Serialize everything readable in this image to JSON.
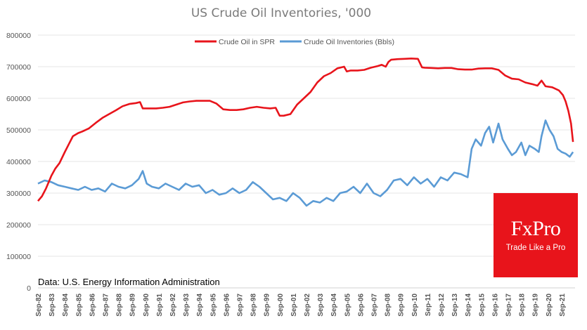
{
  "chart_data": {
    "type": "line",
    "title": "US Crude Oil Inventories, '000",
    "xlabel": "",
    "ylabel": "",
    "ylim": [
      0,
      800000
    ],
    "yticks": [
      "0",
      "100000",
      "200000",
      "300000",
      "400000",
      "500000",
      "600000",
      "700000",
      "800000"
    ],
    "ytick_values": [
      0,
      100000,
      200000,
      300000,
      400000,
      500000,
      600000,
      700000,
      800000
    ],
    "xticks": [
      "Sep-82",
      "Sep-83",
      "Sep-84",
      "Sep-85",
      "Sep-86",
      "Sep-87",
      "Sep-88",
      "Sep-89",
      "Sep-90",
      "Sep-91",
      "Sep-92",
      "Sep-93",
      "Sep-94",
      "Sep-95",
      "Sep-96",
      "Sep-97",
      "Sep-98",
      "Sep-99",
      "Sep-00",
      "Sep-01",
      "Sep-02",
      "Sep-03",
      "Sep-04",
      "Sep-05",
      "Sep-06",
      "Sep-07",
      "Sep-08",
      "Sep-09",
      "Sep-10",
      "Sep-11",
      "Sep-12",
      "Sep-13",
      "Sep-14",
      "Sep-15",
      "Sep-16",
      "Sep-17",
      "Sep-18",
      "Sep-19",
      "Sep-20",
      "Sep-21"
    ],
    "xlim": [
      1982.7,
      2022.7
    ],
    "grid": true,
    "legend_position": "top-center",
    "series": [
      {
        "name": "Crude Oil in SPR",
        "color": "#e8141b",
        "x": [
          1982.7,
          1983.0,
          1983.3,
          1983.7,
          1984.0,
          1984.3,
          1984.7,
          1985.0,
          1985.3,
          1985.7,
          1986.0,
          1986.5,
          1987.0,
          1987.5,
          1988.0,
          1988.5,
          1989.0,
          1989.5,
          1990.0,
          1990.3,
          1990.5,
          1991.0,
          1991.5,
          1992.0,
          1992.5,
          1993.0,
          1993.5,
          1994.0,
          1994.5,
          1995.0,
          1995.5,
          1996.0,
          1996.5,
          1997.0,
          1997.5,
          1998.0,
          1998.5,
          1999.0,
          1999.5,
          2000.0,
          2000.4,
          2000.7,
          2001.0,
          2001.5,
          2002.0,
          2002.5,
          2003.0,
          2003.5,
          2004.0,
          2004.5,
          2005.0,
          2005.5,
          2005.7,
          2006.0,
          2006.5,
          2007.0,
          2007.5,
          2008.0,
          2008.3,
          2008.6,
          2008.8,
          2009.0,
          2009.5,
          2010.0,
          2010.5,
          2011.0,
          2011.3,
          2011.5,
          2012.0,
          2012.5,
          2013.0,
          2013.5,
          2014.0,
          2014.5,
          2015.0,
          2015.5,
          2016.0,
          2016.5,
          2017.0,
          2017.5,
          2018.0,
          2018.5,
          2019.0,
          2019.5,
          2019.9,
          2020.2,
          2020.5,
          2021.0,
          2021.5,
          2021.8,
          2022.0,
          2022.2,
          2022.4,
          2022.55
        ],
        "values": [
          275000,
          290000,
          315000,
          355000,
          378000,
          395000,
          430000,
          455000,
          480000,
          490000,
          495000,
          505000,
          522000,
          538000,
          550000,
          562000,
          575000,
          582000,
          585000,
          588000,
          568000,
          568000,
          568000,
          570000,
          573000,
          580000,
          587000,
          590000,
          592000,
          592000,
          592000,
          583000,
          565000,
          563000,
          563000,
          565000,
          570000,
          573000,
          570000,
          568000,
          570000,
          545000,
          545000,
          550000,
          580000,
          600000,
          620000,
          650000,
          670000,
          680000,
          695000,
          700000,
          685000,
          688000,
          688000,
          690000,
          697000,
          702000,
          706000,
          700000,
          715000,
          722000,
          724000,
          725000,
          726000,
          725000,
          698000,
          697000,
          696000,
          695000,
          696000,
          696000,
          692000,
          691000,
          691000,
          694000,
          695000,
          695000,
          690000,
          672000,
          662000,
          660000,
          650000,
          645000,
          640000,
          656000,
          638000,
          635000,
          625000,
          610000,
          590000,
          560000,
          520000,
          462000
        ]
      },
      {
        "name": "Crude Oil Inventories (Bbls)",
        "color": "#5b9bd5",
        "x": [
          1982.7,
          1983.2,
          1983.7,
          1984.2,
          1984.7,
          1985.2,
          1985.7,
          1986.2,
          1986.7,
          1987.2,
          1987.7,
          1988.2,
          1988.7,
          1989.2,
          1989.7,
          1990.2,
          1990.5,
          1990.8,
          1991.2,
          1991.7,
          1992.2,
          1992.7,
          1993.2,
          1993.7,
          1994.2,
          1994.7,
          1995.2,
          1995.7,
          1996.2,
          1996.7,
          1997.2,
          1997.7,
          1998.2,
          1998.7,
          1999.2,
          1999.7,
          2000.2,
          2000.7,
          2001.2,
          2001.7,
          2002.2,
          2002.7,
          2003.2,
          2003.7,
          2004.2,
          2004.7,
          2005.2,
          2005.7,
          2006.2,
          2006.7,
          2007.2,
          2007.7,
          2008.2,
          2008.7,
          2009.2,
          2009.7,
          2010.2,
          2010.7,
          2011.2,
          2011.7,
          2012.2,
          2012.7,
          2013.2,
          2013.7,
          2014.2,
          2014.7,
          2015.0,
          2015.3,
          2015.7,
          2016.0,
          2016.3,
          2016.6,
          2017.0,
          2017.3,
          2017.7,
          2018.0,
          2018.3,
          2018.7,
          2019.0,
          2019.3,
          2019.7,
          2020.0,
          2020.2,
          2020.5,
          2020.8,
          2021.1,
          2021.4,
          2021.7,
          2022.0,
          2022.3,
          2022.55
        ],
        "values": [
          330000,
          340000,
          335000,
          325000,
          320000,
          315000,
          310000,
          320000,
          310000,
          315000,
          305000,
          330000,
          320000,
          315000,
          325000,
          345000,
          370000,
          330000,
          320000,
          315000,
          330000,
          320000,
          310000,
          330000,
          320000,
          325000,
          300000,
          310000,
          295000,
          300000,
          315000,
          300000,
          310000,
          335000,
          320000,
          300000,
          280000,
          285000,
          275000,
          300000,
          285000,
          260000,
          275000,
          270000,
          285000,
          275000,
          300000,
          305000,
          320000,
          300000,
          330000,
          300000,
          290000,
          310000,
          340000,
          345000,
          325000,
          350000,
          330000,
          345000,
          320000,
          350000,
          340000,
          365000,
          360000,
          350000,
          440000,
          470000,
          450000,
          490000,
          510000,
          460000,
          520000,
          470000,
          440000,
          420000,
          430000,
          460000,
          420000,
          450000,
          440000,
          430000,
          480000,
          530000,
          500000,
          480000,
          440000,
          430000,
          425000,
          415000,
          430000
        ]
      }
    ]
  },
  "source_note": "Data: U.S. Energy Information Administration",
  "brand": {
    "name": "FxPro",
    "tagline": "Trade Like a Pro",
    "color": "#e8141b"
  }
}
